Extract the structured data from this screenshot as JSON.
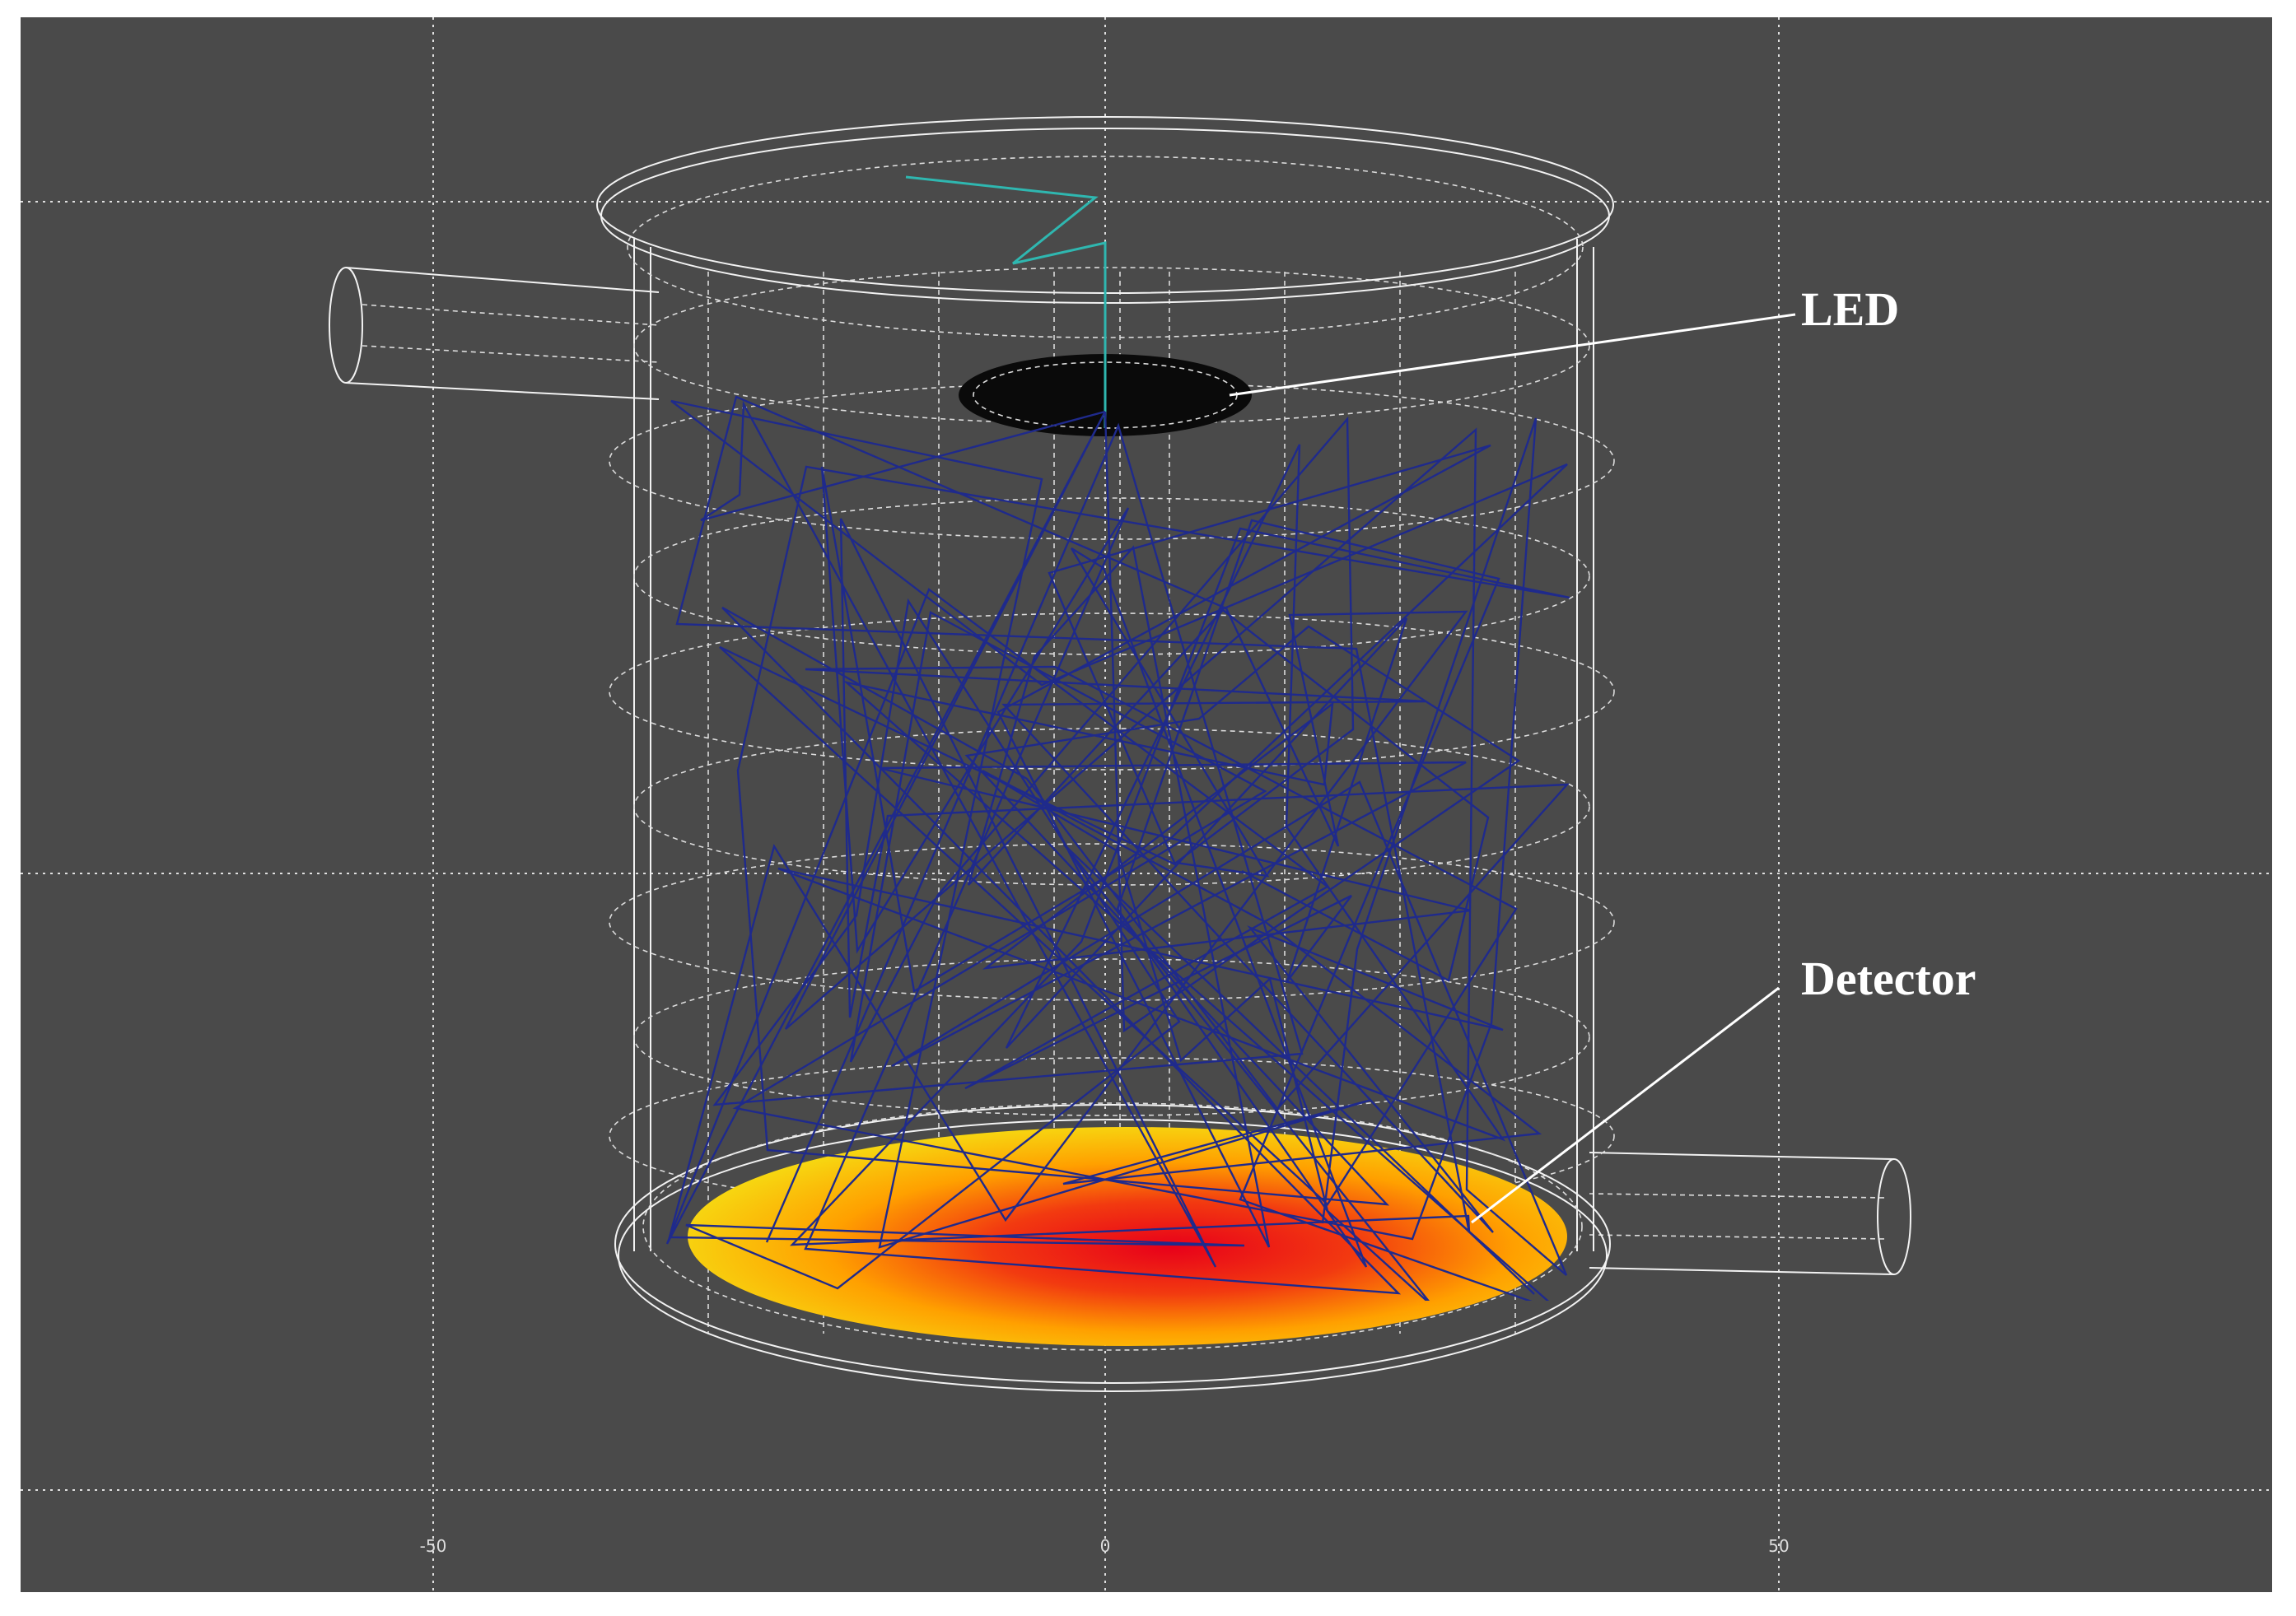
{
  "labels": {
    "led": "LED",
    "detector": "Detector"
  },
  "axis": {
    "x_labels": [
      "-50",
      "0",
      "50"
    ]
  }
}
